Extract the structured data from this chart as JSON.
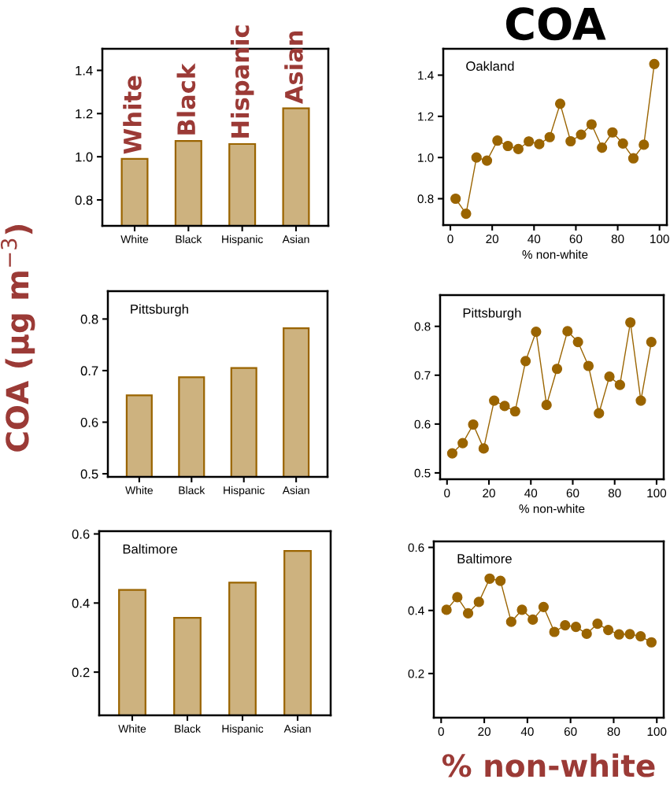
{
  "chart_data": [
    {
      "type": "bar",
      "categories": [
        "White",
        "Black",
        "Hispanic",
        "Asian"
      ],
      "values": [
        0.99,
        1.073,
        1.059,
        1.224
      ],
      "color": "#cdb27f",
      "ylim": [
        0.68,
        1.5
      ],
      "yticks": [
        0.8,
        {
          "value": 1.0,
          "label": "1.0"
        },
        1.2,
        1.4
      ],
      "annotations": [
        {
          "text": "White",
          "x": "White",
          "y": 0.99
        },
        {
          "text": "Black",
          "x": "Black",
          "y": 1.073
        },
        {
          "text": "Hispanic",
          "x": "Hispanic",
          "y": 1.059
        },
        {
          "text": "Asian",
          "x": "Asian",
          "y": 1.224
        }
      ]
    },
    {
      "type": "line",
      "title": "COA",
      "xlabel": "% non-white",
      "marker": "circle",
      "color": "#9a6400",
      "x": [
        2.5,
        7.5,
        12.5,
        17.5,
        22.5,
        27.5,
        32.5,
        37.5,
        42.5,
        47.5,
        52.5,
        57.5,
        62.5,
        67.5,
        72.5,
        77.5,
        82.5,
        87.5,
        92.5,
        97.5
      ],
      "values": [
        0.8,
        0.727,
        1.0,
        0.985,
        1.082,
        1.056,
        1.041,
        1.078,
        1.065,
        1.099,
        1.261,
        1.079,
        1.111,
        1.161,
        1.048,
        1.122,
        1.068,
        0.996,
        1.062,
        1.454
      ],
      "xlim": [
        -3.4,
        103.5
      ],
      "ylim": [
        0.672,
        1.528
      ],
      "xticks": [
        0,
        20,
        40,
        60,
        80,
        100
      ],
      "yticks": [
        0.8,
        {
          "value": 1.0,
          "label": "1.0"
        },
        1.2,
        1.4
      ],
      "annotations": [
        "Oakland"
      ]
    },
    {
      "type": "bar",
      "ylabel": "COA (µg m$^{−3}$)",
      "categories": [
        "White",
        "Black",
        "Hispanic",
        "Asian"
      ],
      "values": [
        0.652,
        0.687,
        0.705,
        0.782
      ],
      "color": "#cdb27f",
      "ylim": [
        0.494,
        0.854
      ],
      "yticks": [
        0.5,
        0.6,
        0.7,
        0.8
      ],
      "annotations": [
        "Pittsburgh"
      ]
    },
    {
      "type": "line",
      "xlabel": "% non-white",
      "marker": "circle",
      "color": "#9a6400",
      "x": [
        2.5,
        7.5,
        12.5,
        17.5,
        22.5,
        27.5,
        32.5,
        37.5,
        42.5,
        47.5,
        52.5,
        57.5,
        62.5,
        67.5,
        72.5,
        77.5,
        82.5,
        87.5,
        92.5,
        97.5
      ],
      "values": [
        0.54,
        0.561,
        0.599,
        0.55,
        0.648,
        0.637,
        0.626,
        0.729,
        0.789,
        0.639,
        0.713,
        0.79,
        0.768,
        0.719,
        0.622,
        0.697,
        0.68,
        0.808,
        0.648,
        0.768
      ],
      "xlim": [
        -3.3,
        103.4
      ],
      "ylim": [
        0.487,
        0.864
      ],
      "xticks": [
        0,
        20,
        40,
        60,
        80,
        100
      ],
      "yticks": [
        0.5,
        0.6,
        0.7,
        0.8
      ],
      "annotations": [
        "Pittsburgh"
      ]
    },
    {
      "type": "bar",
      "categories": [
        "White",
        "Black",
        "Hispanic",
        "Asian"
      ],
      "values": [
        0.438,
        0.357,
        0.459,
        0.551
      ],
      "color": "#cdb27f",
      "ylim": [
        0.075,
        0.608
      ],
      "yticks": [
        0.2,
        0.4,
        0.6
      ],
      "annotations": [
        "Baltimore"
      ]
    },
    {
      "type": "line",
      "xlabel": "% non-white",
      "marker": "circle",
      "color": "#9a6400",
      "x": [
        2.5,
        7.5,
        12.5,
        17.5,
        22.5,
        27.5,
        32.5,
        37.5,
        42.5,
        47.5,
        52.5,
        57.5,
        62.5,
        67.5,
        72.5,
        77.5,
        82.5,
        87.5,
        92.5,
        97.5
      ],
      "values": [
        0.402,
        0.442,
        0.391,
        0.427,
        0.501,
        0.494,
        0.364,
        0.402,
        0.371,
        0.411,
        0.332,
        0.353,
        0.348,
        0.326,
        0.358,
        0.338,
        0.324,
        0.325,
        0.318,
        0.299
      ],
      "xlim": [
        -3.4,
        103.2
      ],
      "ylim": [
        0.06,
        0.619
      ],
      "xticks": [
        0,
        20,
        40,
        60,
        80,
        100
      ],
      "yticks": [
        0.2,
        0.4,
        0.6
      ],
      "annotations": [
        "Baltimore"
      ]
    }
  ]
}
